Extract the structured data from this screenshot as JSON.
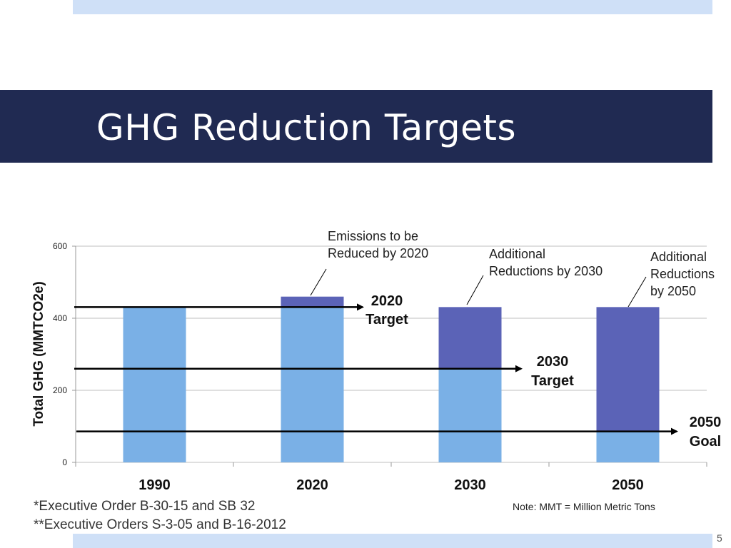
{
  "slide": {
    "title": "GHG Reduction Targets",
    "footnote1": "*Executive Order B-30-15 and SB 32",
    "footnote2": "**Executive Orders S-3-05 and B-16-2012",
    "note": "Note: MMT = Million Metric Tons",
    "page_number": "5"
  },
  "chart_data": {
    "type": "bar",
    "stacked": true,
    "ylabel": "Total GHG (MMTCO2e)",
    "ylim": [
      0,
      600
    ],
    "yticks": [
      0,
      200,
      400,
      600
    ],
    "grid": true,
    "categories": [
      "1990",
      "2020",
      "2030",
      "2050"
    ],
    "series": [
      {
        "values": [
          431,
          431,
          260,
          86
        ],
        "color": "#7ab0e6"
      },
      {
        "values": [
          0,
          29,
          171,
          345
        ],
        "color": "#5b63b7"
      }
    ],
    "target_lines": [
      {
        "value": 431,
        "label": [
          "2020",
          "Target"
        ]
      },
      {
        "value": 260,
        "label": [
          "2030",
          "Target"
        ]
      },
      {
        "value": 86,
        "label": [
          "2050",
          "Goal"
        ]
      }
    ],
    "annotations": [
      {
        "category": "2020",
        "lines": [
          "Emissions to be",
          "Reduced by 2020"
        ]
      },
      {
        "category": "2030",
        "lines": [
          "Additional",
          "Reductions by 2030"
        ]
      },
      {
        "category": "2050",
        "lines": [
          "Additional",
          "Reductions",
          "by 2050"
        ]
      }
    ]
  }
}
